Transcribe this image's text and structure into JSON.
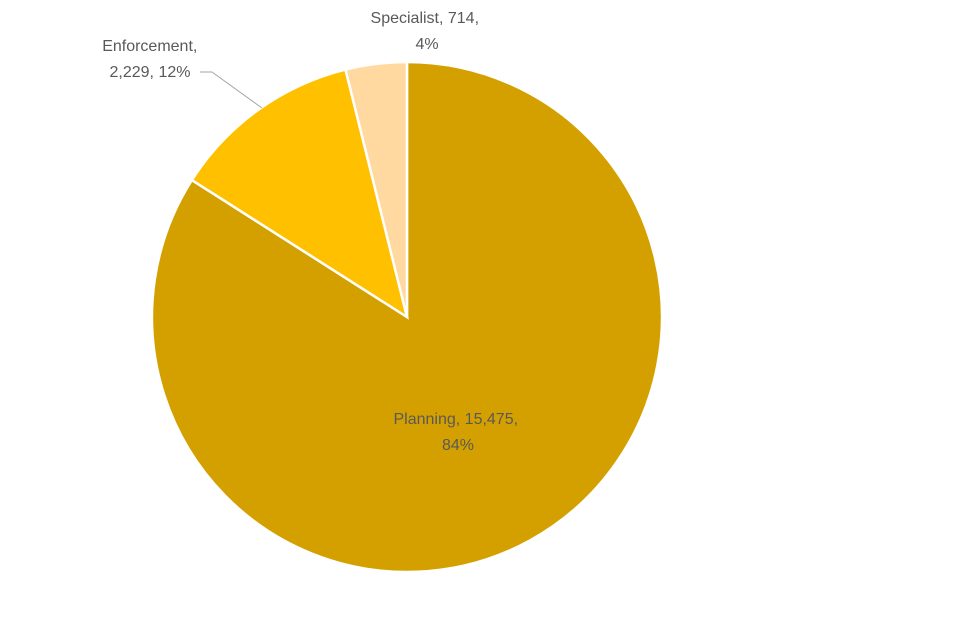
{
  "chart_data": {
    "type": "pie",
    "start_angle_deg": 0,
    "direction": "clockwise",
    "slices": [
      {
        "name": "Planning",
        "value": 15475,
        "percent": "84%",
        "value_label": "15,475",
        "color": "#D4A000",
        "label_line1": "Planning, 15,475,",
        "label_line2": "84%"
      },
      {
        "name": "Enforcement",
        "value": 2229,
        "percent": "12%",
        "value_label": "2,229",
        "color": "#FFC000",
        "label_line1": "Enforcement,",
        "label_line2": "2,229, 12%"
      },
      {
        "name": "Specialist",
        "value": 714,
        "percent": "4%",
        "value_label": "714",
        "color": "#FFD9A0",
        "label_line1": "Specialist, 714,",
        "label_line2": "4%"
      }
    ]
  }
}
